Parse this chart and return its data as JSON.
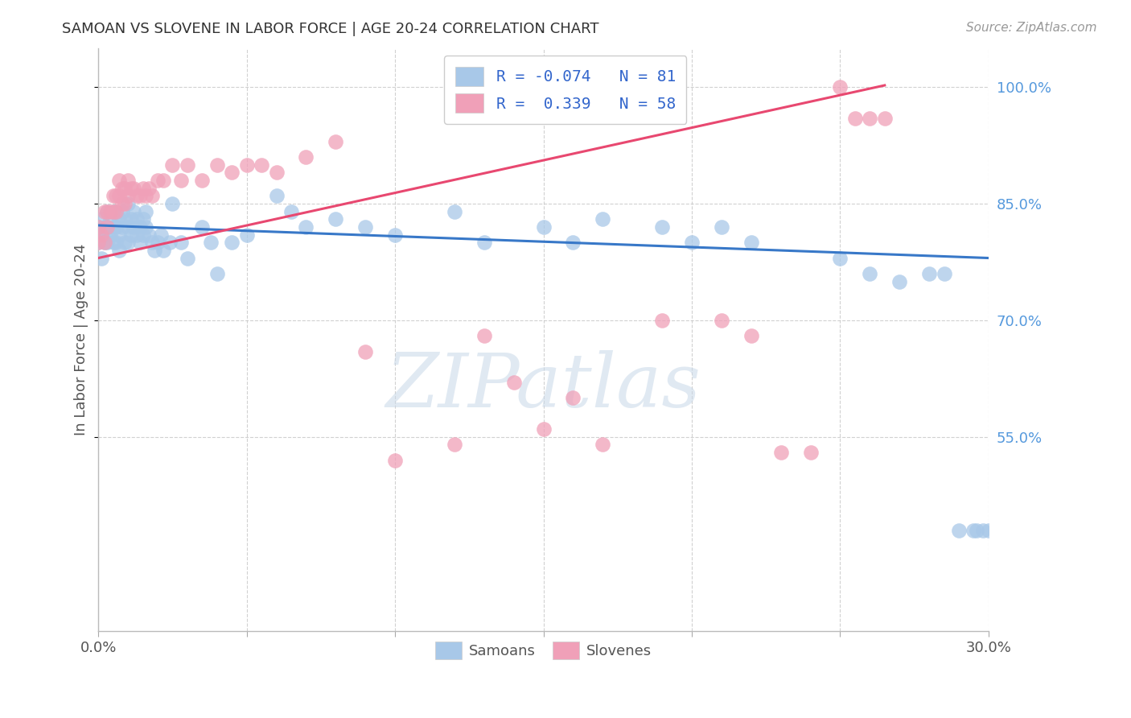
{
  "title": "SAMOAN VS SLOVENE IN LABOR FORCE | AGE 20-24 CORRELATION CHART",
  "source": "Source: ZipAtlas.com",
  "ylabel": "In Labor Force | Age 20-24",
  "xlim": [
    0.0,
    0.3
  ],
  "ylim": [
    0.3,
    1.05
  ],
  "yticks": [
    1.0,
    0.85,
    0.7,
    0.55
  ],
  "ytick_labels": [
    "100.0%",
    "85.0%",
    "70.0%",
    "55.0%"
  ],
  "xtick_positions": [
    0.0,
    0.05,
    0.1,
    0.15,
    0.2,
    0.25,
    0.3
  ],
  "xtick_labels": [
    "0.0%",
    "",
    "",
    "",
    "",
    "",
    "30.0%"
  ],
  "blue_R": -0.074,
  "blue_N": 81,
  "pink_R": 0.339,
  "pink_N": 58,
  "blue_color": "#a8c8e8",
  "pink_color": "#f0a0b8",
  "blue_line_color": "#3878c8",
  "pink_line_color": "#e84870",
  "watermark": "ZIPatlas",
  "blue_line_x": [
    0.0,
    0.3
  ],
  "blue_line_y": [
    0.822,
    0.78
  ],
  "pink_line_x": [
    0.0,
    0.265
  ],
  "pink_line_y": [
    0.78,
    1.002
  ],
  "blue_scatter_x": [
    0.0,
    0.0,
    0.001,
    0.001,
    0.001,
    0.002,
    0.002,
    0.002,
    0.003,
    0.003,
    0.003,
    0.004,
    0.004,
    0.005,
    0.005,
    0.005,
    0.006,
    0.006,
    0.006,
    0.007,
    0.007,
    0.007,
    0.008,
    0.008,
    0.009,
    0.009,
    0.01,
    0.01,
    0.01,
    0.011,
    0.011,
    0.012,
    0.012,
    0.013,
    0.013,
    0.014,
    0.014,
    0.015,
    0.015,
    0.016,
    0.016,
    0.017,
    0.018,
    0.019,
    0.02,
    0.021,
    0.022,
    0.024,
    0.025,
    0.028,
    0.03,
    0.035,
    0.038,
    0.04,
    0.045,
    0.05,
    0.06,
    0.065,
    0.07,
    0.08,
    0.09,
    0.1,
    0.12,
    0.13,
    0.15,
    0.16,
    0.17,
    0.19,
    0.2,
    0.21,
    0.22,
    0.25,
    0.26,
    0.27,
    0.28,
    0.285,
    0.29,
    0.295,
    0.296,
    0.298,
    0.3
  ],
  "blue_scatter_y": [
    0.8,
    0.82,
    0.81,
    0.83,
    0.78,
    0.82,
    0.8,
    0.81,
    0.82,
    0.84,
    0.8,
    0.83,
    0.81,
    0.84,
    0.82,
    0.8,
    0.84,
    0.82,
    0.8,
    0.83,
    0.81,
    0.79,
    0.84,
    0.82,
    0.83,
    0.8,
    0.85,
    0.82,
    0.8,
    0.83,
    0.81,
    0.84,
    0.82,
    0.83,
    0.81,
    0.82,
    0.8,
    0.83,
    0.81,
    0.84,
    0.82,
    0.81,
    0.8,
    0.79,
    0.8,
    0.81,
    0.79,
    0.8,
    0.85,
    0.8,
    0.78,
    0.82,
    0.8,
    0.76,
    0.8,
    0.81,
    0.86,
    0.84,
    0.82,
    0.83,
    0.82,
    0.81,
    0.84,
    0.8,
    0.82,
    0.8,
    0.83,
    0.82,
    0.8,
    0.82,
    0.8,
    0.78,
    0.76,
    0.75,
    0.76,
    0.76,
    0.43,
    0.43,
    0.43,
    0.43,
    0.43
  ],
  "pink_scatter_x": [
    0.0,
    0.0,
    0.001,
    0.002,
    0.002,
    0.003,
    0.003,
    0.004,
    0.005,
    0.005,
    0.006,
    0.006,
    0.007,
    0.007,
    0.008,
    0.008,
    0.009,
    0.009,
    0.01,
    0.01,
    0.011,
    0.012,
    0.013,
    0.014,
    0.015,
    0.016,
    0.017,
    0.018,
    0.02,
    0.022,
    0.025,
    0.028,
    0.03,
    0.035,
    0.04,
    0.045,
    0.05,
    0.055,
    0.06,
    0.07,
    0.08,
    0.09,
    0.1,
    0.12,
    0.13,
    0.14,
    0.15,
    0.16,
    0.17,
    0.19,
    0.21,
    0.22,
    0.23,
    0.24,
    0.25,
    0.255,
    0.26,
    0.265
  ],
  "pink_scatter_y": [
    0.8,
    0.82,
    0.81,
    0.84,
    0.8,
    0.84,
    0.82,
    0.84,
    0.86,
    0.84,
    0.86,
    0.84,
    0.88,
    0.86,
    0.87,
    0.85,
    0.87,
    0.85,
    0.88,
    0.86,
    0.87,
    0.87,
    0.86,
    0.86,
    0.87,
    0.86,
    0.87,
    0.86,
    0.88,
    0.88,
    0.9,
    0.88,
    0.9,
    0.88,
    0.9,
    0.89,
    0.9,
    0.9,
    0.89,
    0.91,
    0.93,
    0.66,
    0.52,
    0.54,
    0.68,
    0.62,
    0.56,
    0.6,
    0.54,
    0.7,
    0.7,
    0.68,
    0.53,
    0.53,
    1.0,
    0.96,
    0.96,
    0.96
  ]
}
